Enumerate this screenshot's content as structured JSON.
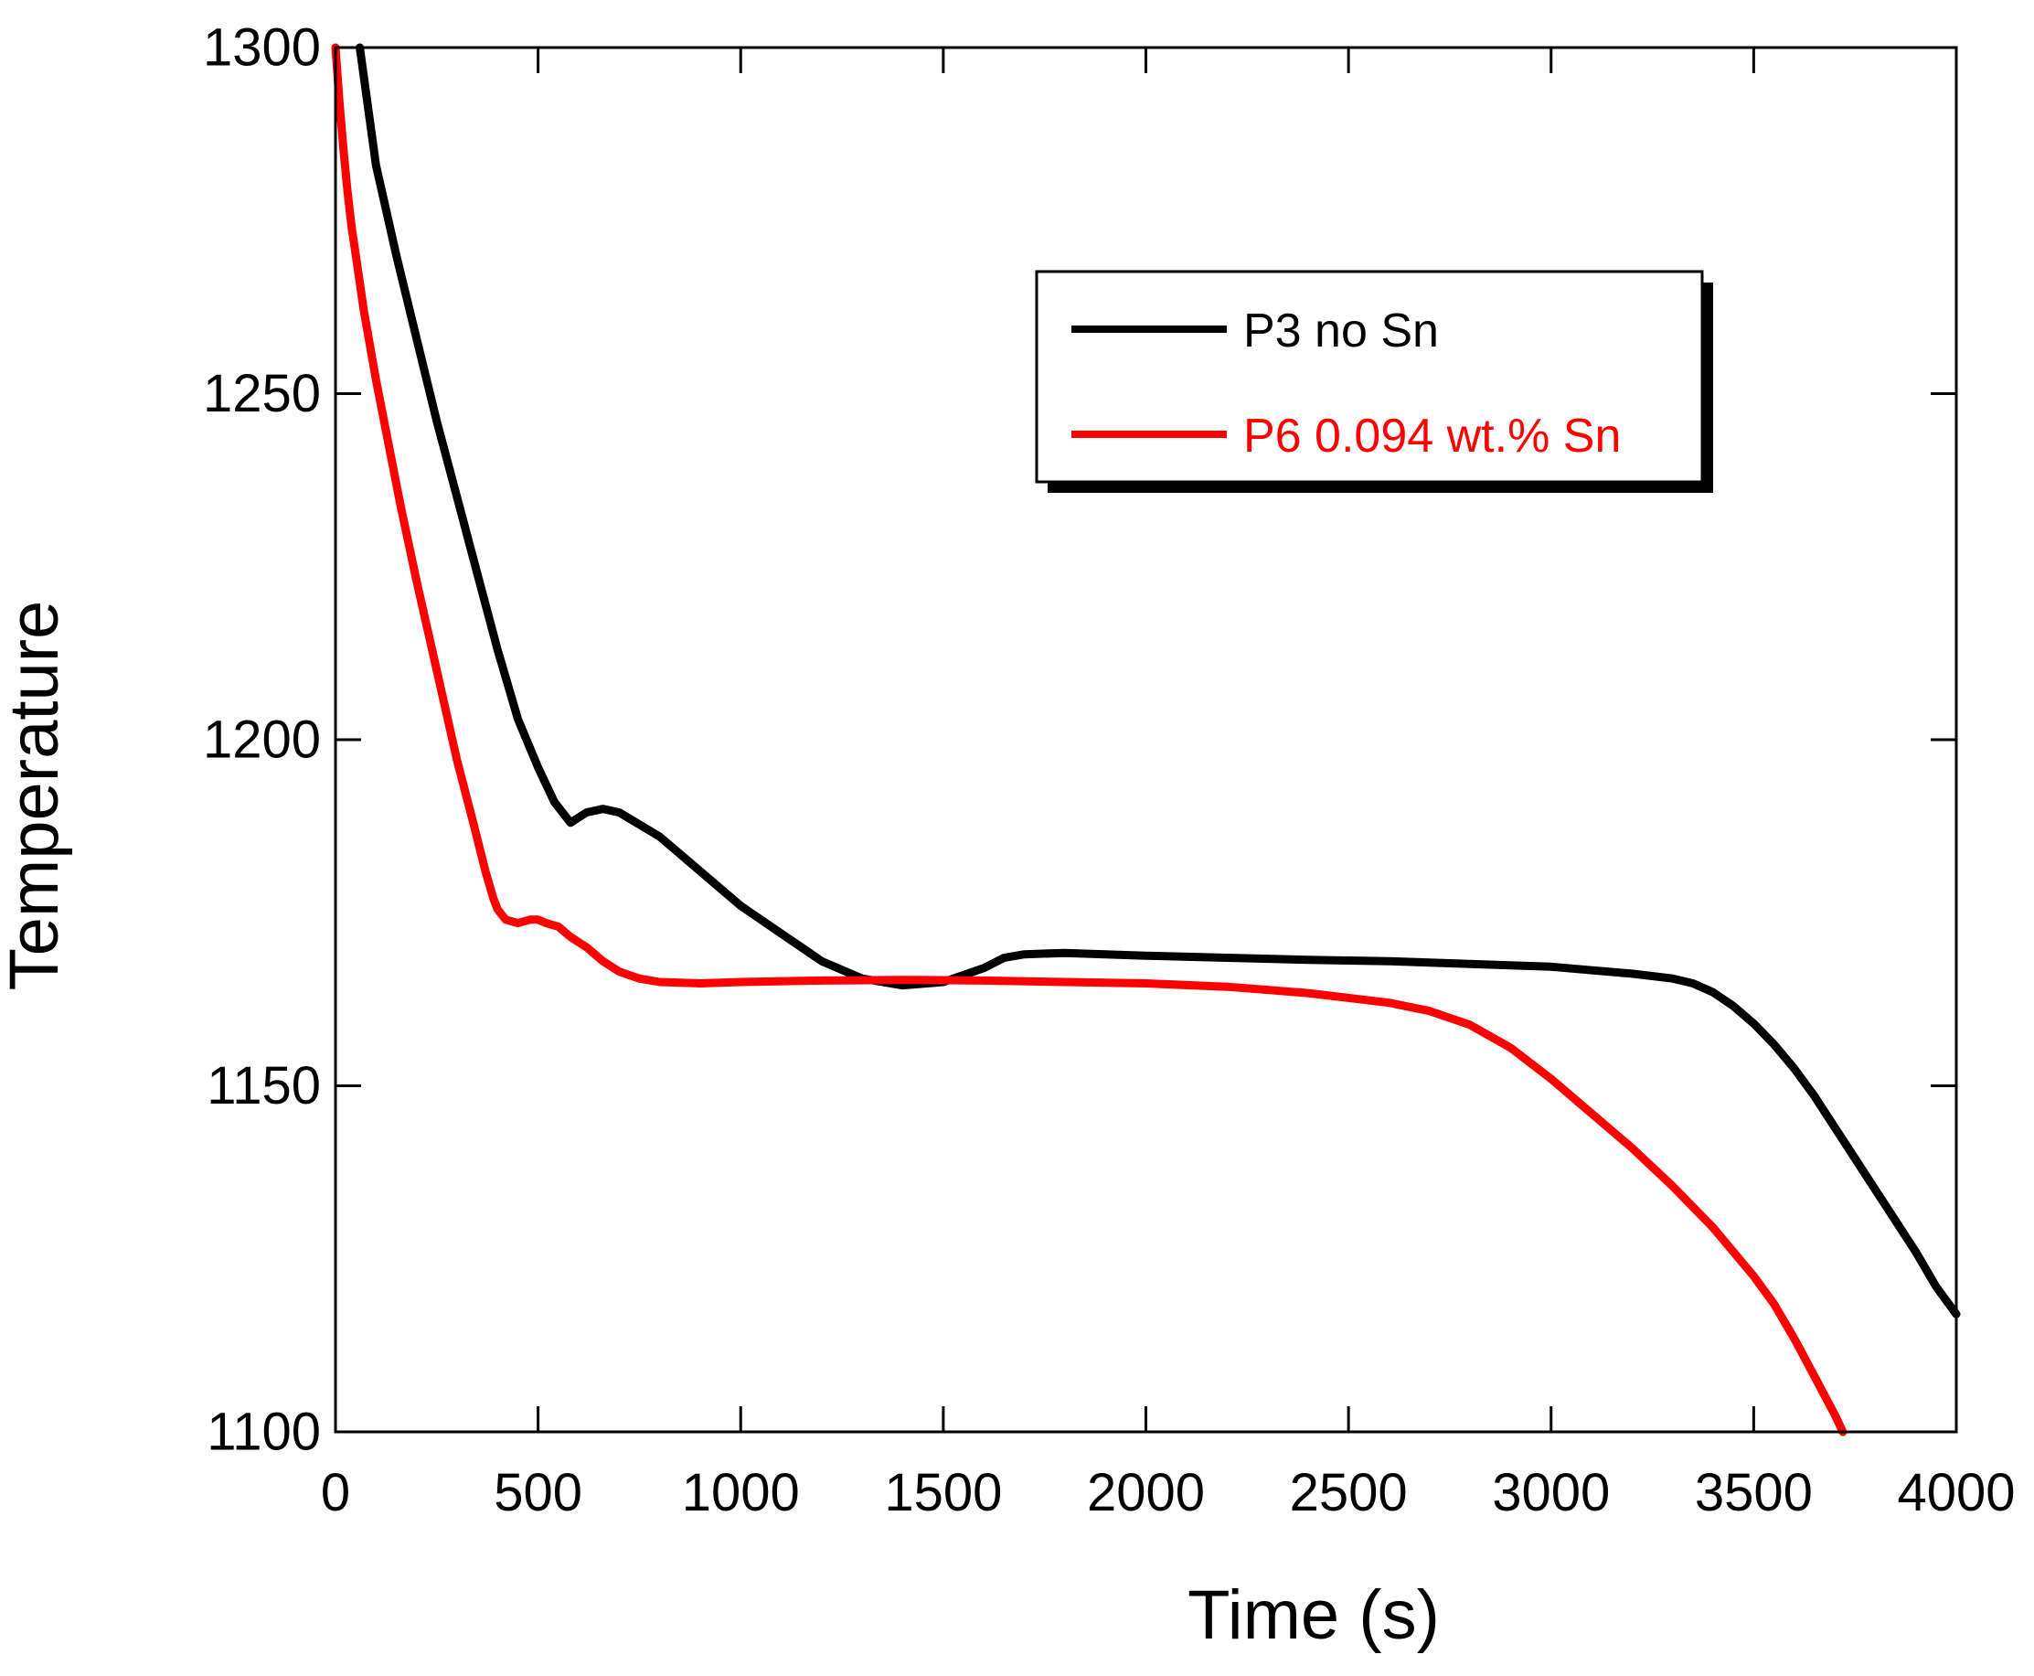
{
  "chart_data": {
    "type": "line",
    "title": "",
    "xlabel": "Time (s)",
    "ylabel": "Temperature",
    "xlim": [
      0,
      4000
    ],
    "ylim": [
      1100,
      1300
    ],
    "xticks": [
      0,
      500,
      1000,
      1500,
      2000,
      2500,
      3000,
      3500,
      4000
    ],
    "yticks": [
      1100,
      1150,
      1200,
      1250,
      1300
    ],
    "xtick_labels": [
      "0",
      "500",
      "1000",
      "1500",
      "2000",
      "2500",
      "3000",
      "3500",
      "4000"
    ],
    "ytick_labels": [
      "1100",
      "1150",
      "1200",
      "1250",
      "1300"
    ],
    "grid": false,
    "legend_position": "top-right",
    "series": [
      {
        "name": "P3 no Sn",
        "color": "#000000",
        "x": [
          60,
          100,
          150,
          200,
          250,
          300,
          350,
          400,
          450,
          500,
          540,
          580,
          620,
          660,
          700,
          800,
          900,
          1000,
          1100,
          1200,
          1300,
          1400,
          1500,
          1550,
          1600,
          1650,
          1700,
          1800,
          1900,
          2000,
          2200,
          2400,
          2600,
          2800,
          3000,
          3200,
          3300,
          3350,
          3400,
          3450,
          3500,
          3550,
          3600,
          3650,
          3700,
          3750,
          3800,
          3850,
          3900,
          3950,
          4000
        ],
        "values": [
          1300,
          1283,
          1270,
          1258,
          1246,
          1235,
          1224,
          1213,
          1203,
          1196,
          1191,
          1188,
          1189.5,
          1190,
          1189.5,
          1186,
          1181,
          1176,
          1172,
          1168,
          1165.5,
          1164.5,
          1165,
          1166,
          1167,
          1168.5,
          1169,
          1169.2,
          1169,
          1168.8,
          1168.5,
          1168.2,
          1168,
          1167.6,
          1167.2,
          1166.2,
          1165.5,
          1164.8,
          1163.5,
          1161.5,
          1159,
          1156,
          1152.5,
          1148.5,
          1144,
          1139.5,
          1135,
          1130.5,
          1126,
          1121,
          1117
        ]
      },
      {
        "name": "P6 0.094 wt.% Sn",
        "color": "#ff0000",
        "x": [
          0,
          10,
          20,
          30,
          40,
          50,
          70,
          100,
          130,
          160,
          200,
          250,
          300,
          340,
          370,
          390,
          400,
          420,
          450,
          480,
          500,
          520,
          550,
          580,
          620,
          660,
          700,
          750,
          800,
          900,
          1000,
          1200,
          1400,
          1600,
          1800,
          2000,
          2200,
          2400,
          2600,
          2700,
          2800,
          2900,
          3000,
          3100,
          3200,
          3300,
          3400,
          3500,
          3550,
          3600,
          3650,
          3700,
          3720
        ],
        "values": [
          1300,
          1292,
          1285,
          1279,
          1274,
          1270,
          1262,
          1252,
          1243,
          1234,
          1223,
          1210,
          1197,
          1188,
          1181,
          1177,
          1175.5,
          1174,
          1173.5,
          1174,
          1174,
          1173.5,
          1173,
          1171.5,
          1170,
          1168,
          1166.5,
          1165.5,
          1165,
          1164.8,
          1165,
          1165.2,
          1165.3,
          1165.2,
          1165,
          1164.8,
          1164.3,
          1163.4,
          1162,
          1160.8,
          1158.8,
          1155.5,
          1151,
          1146,
          1141,
          1135.5,
          1129.5,
          1122.5,
          1118.5,
          1113.5,
          1108,
          1102.5,
          1100
        ]
      }
    ]
  }
}
